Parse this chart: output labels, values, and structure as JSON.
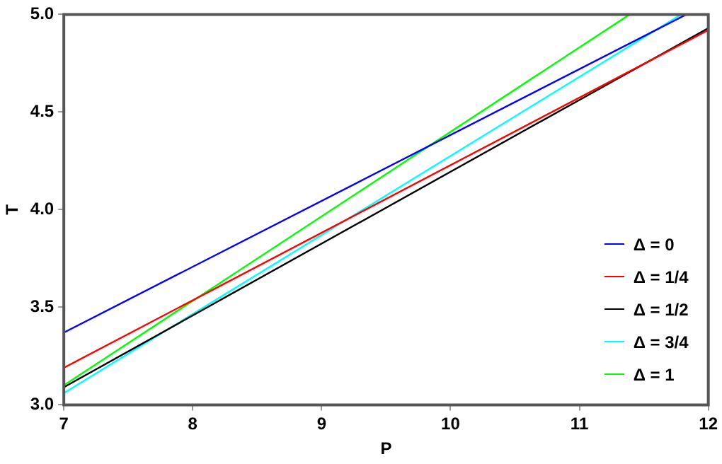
{
  "chart_data": {
    "type": "line",
    "xlabel": "P",
    "ylabel": "T",
    "xlim": [
      7,
      12
    ],
    "ylim": [
      3,
      5
    ],
    "xticks": [
      7,
      8,
      9,
      10,
      11,
      12
    ],
    "yticks": [
      {
        "value": 3,
        "label": "3.0"
      },
      3.5,
      {
        "value": 4,
        "label": "4.0"
      },
      4.5,
      {
        "value": 5,
        "label": "5.0"
      }
    ],
    "grid": false,
    "legend": "bottom right",
    "marker": "none",
    "line_style": "solid",
    "series": [
      {
        "name": "Δ = 0",
        "color": "#0000ff",
        "x": [
          7,
          11.83
        ],
        "values": [
          3.37,
          5
        ]
      },
      {
        "name": "Δ = 1/4",
        "color": "#ff0000",
        "x": [
          7,
          12
        ],
        "values": [
          3.19,
          4.92
        ]
      },
      {
        "name": "Δ = 1/2",
        "color": "#000000",
        "x": [
          7,
          12
        ],
        "values": [
          3.09,
          4.93
        ]
      },
      {
        "name": "Δ = 3/4",
        "color": "#00ffff",
        "x": [
          7,
          11.79
        ],
        "values": [
          3.06,
          5
        ]
      },
      {
        "name": "Δ = 1",
        "color": "#00ff00",
        "x": [
          7,
          11.39
        ],
        "values": [
          3.1,
          5
        ]
      }
    ]
  }
}
